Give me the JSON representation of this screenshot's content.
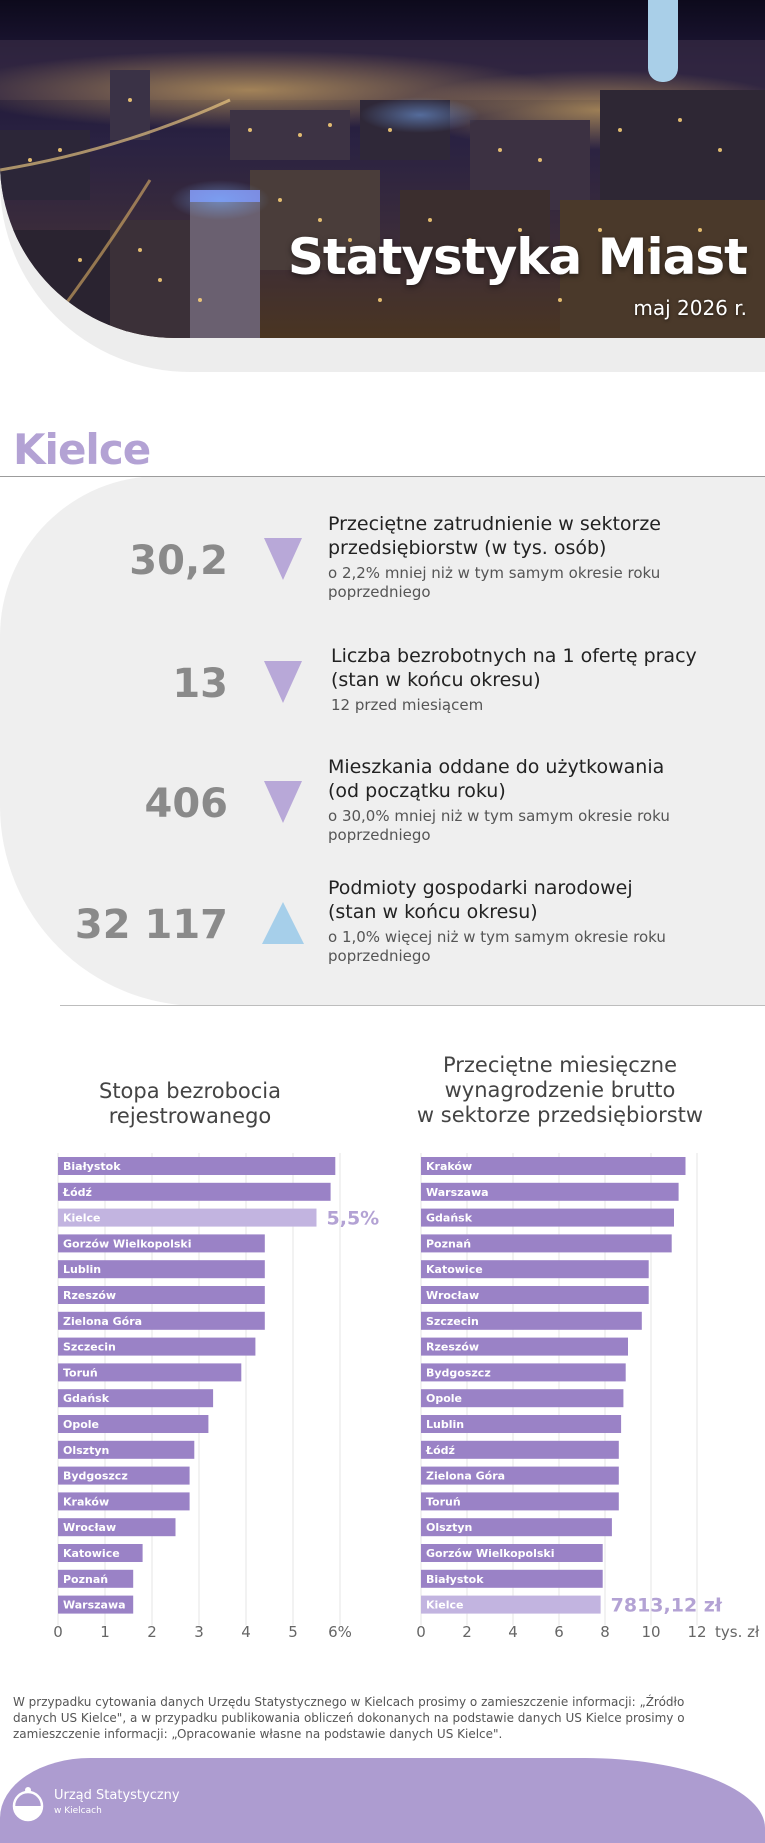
{
  "header": {
    "title": "Statystyka Miast",
    "date": "maj 2026 r."
  },
  "city": "Kielce",
  "stats": [
    {
      "value": "30,2",
      "direction": "down",
      "title_line1": "Przeciętne zatrudnienie w sektorze",
      "title_line2": "przedsiębiorstw (w tys. osób)",
      "note_line1": "o 2,2% mniej niż w tym samym okresie roku",
      "note_line2": "poprzedniego"
    },
    {
      "value": "13",
      "direction": "down",
      "title_line1": "Liczba bezrobotnych na 1 ofertę pracy",
      "title_line2": "(stan w końcu okresu)",
      "note_line1": "12 przed miesiącem",
      "note_line2": ""
    },
    {
      "value": "406",
      "direction": "down",
      "title_line1": "Mieszkania oddane do użytkowania",
      "title_line2": "(od początku roku)",
      "note_line1": "o 30,0% mniej niż w tym samym okresie roku",
      "note_line2": "poprzedniego"
    },
    {
      "value": "32 117",
      "direction": "up",
      "title_line1": "Podmioty gospodarki narodowej",
      "title_line2": "(stan w końcu okresu)",
      "note_line1": "o 1,0% więcej niż w tym samym okresie roku",
      "note_line2": "poprzedniego"
    }
  ],
  "colors": {
    "accent_purple": "#b3a2d4",
    "bar_purple": "#9a82c6",
    "highlight_bar": "#c2b4e0",
    "arrow_down": "#b8a8d8",
    "arrow_up": "#a6cfea",
    "value_gray": "#8a8a8a",
    "footer": "#ad9cd0"
  },
  "chart_data": [
    {
      "type": "bar",
      "orientation": "horizontal",
      "title_line1": "Stopa bezrobocia",
      "title_line2": "rejestrowanego",
      "title_line3": "",
      "unit": "%",
      "highlight": "Kielce",
      "highlight_label": "5,5%",
      "categories": [
        "Białystok",
        "Łódź",
        "Kielce",
        "Gorzów Wielkopolski",
        "Lublin",
        "Rzeszów",
        "Zielona Góra",
        "Szczecin",
        "Toruń",
        "Gdańsk",
        "Opole",
        "Olsztyn",
        "Bydgoszcz",
        "Kraków",
        "Wrocław",
        "Katowice",
        "Poznań",
        "Warszawa"
      ],
      "values": [
        5.9,
        5.8,
        5.5,
        4.4,
        4.4,
        4.4,
        4.4,
        4.2,
        3.9,
        3.3,
        3.2,
        2.9,
        2.8,
        2.8,
        2.5,
        1.8,
        1.6,
        1.6
      ],
      "xlim": [
        0,
        6
      ],
      "ticks": [
        "0",
        "1",
        "2",
        "3",
        "4",
        "5",
        "6%"
      ],
      "tick_values": [
        0,
        1,
        2,
        3,
        4,
        5,
        6
      ]
    },
    {
      "type": "bar",
      "orientation": "horizontal",
      "title_line1": "Przeciętne miesięczne",
      "title_line2": "wynagrodzenie brutto",
      "title_line3": "w sektorze przedsiębiorstw",
      "unit": "tys. zł",
      "highlight": "Kielce",
      "highlight_label": "7813,12 zł",
      "categories": [
        "Kraków",
        "Warszawa",
        "Gdańsk",
        "Poznań",
        "Katowice",
        "Wrocław",
        "Szczecin",
        "Rzeszów",
        "Bydgoszcz",
        "Opole",
        "Lublin",
        "Łódź",
        "Zielona Góra",
        "Toruń",
        "Olsztyn",
        "Gorzów Wielkopolski",
        "Białystok",
        "Kielce"
      ],
      "values": [
        11.5,
        11.2,
        11.0,
        10.9,
        9.9,
        9.9,
        9.6,
        9.0,
        8.9,
        8.8,
        8.7,
        8.6,
        8.6,
        8.6,
        8.3,
        7.9,
        7.9,
        7.81
      ],
      "xlim": [
        0,
        12
      ],
      "ticks": [
        "0",
        "2",
        "4",
        "6",
        "8",
        "10",
        "12"
      ],
      "tick_values": [
        0,
        2,
        4,
        6,
        8,
        10,
        12
      ],
      "axis_unit_label": "tys. zł"
    }
  ],
  "footnote": "W przypadku cytowania danych Urzędu Statystycznego w Kielcach prosimy o zamieszczenie informacji: „Źródło danych US Kielce\", a w przypadku publikowania obliczeń dokonanych na podstawie danych US Kielce prosimy o zamieszczenie informacji: „Opracowanie własne na podstawie danych US Kielce\".",
  "footer": {
    "brand_line1": "Urząd Statystyczny",
    "brand_line2": "w Kielcach",
    "logo_icon": "circle-logo-icon"
  }
}
